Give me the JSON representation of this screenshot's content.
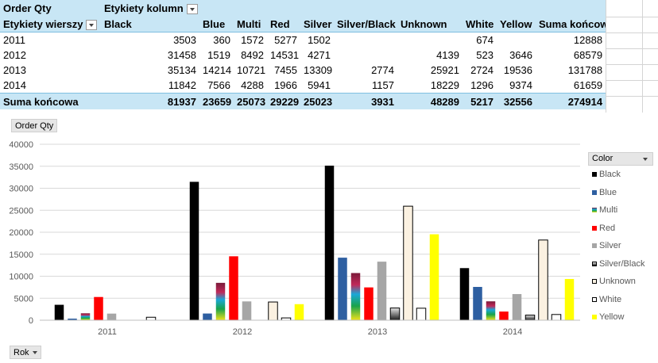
{
  "pivot": {
    "value_field": "Order Qty",
    "column_labels": "Etykiety kolumn",
    "row_labels": "Etykiety wierszy",
    "columns": [
      "Black",
      "Blue",
      "Multi",
      "Red",
      "Silver",
      "Silver/Black",
      "Unknown",
      "White",
      "Yellow",
      "Suma końcowa"
    ],
    "rows": [
      {
        "label": "2011",
        "cells": [
          "3503",
          "360",
          "1572",
          "5277",
          "1502",
          "",
          "",
          "674",
          "",
          "12888"
        ]
      },
      {
        "label": "2012",
        "cells": [
          "31458",
          "1519",
          "8492",
          "14531",
          "4271",
          "",
          "4139",
          "523",
          "3646",
          "68579"
        ]
      },
      {
        "label": "2013",
        "cells": [
          "35134",
          "14214",
          "10721",
          "7455",
          "13309",
          "2774",
          "25921",
          "2724",
          "19536",
          "131788"
        ]
      },
      {
        "label": "2014",
        "cells": [
          "11842",
          "7566",
          "4288",
          "1966",
          "5941",
          "1157",
          "18229",
          "1296",
          "9374",
          "61659"
        ]
      }
    ],
    "total": {
      "label": "Suma końcowa",
      "cells": [
        "81937",
        "23659",
        "25073",
        "29229",
        "25023",
        "3931",
        "48289",
        "5217",
        "32556",
        "274914"
      ]
    }
  },
  "chart": {
    "value_button": "Order Qty",
    "axis_button": "Rok",
    "legend_title": "Color"
  },
  "chart_data": {
    "type": "bar",
    "categories": [
      "2011",
      "2012",
      "2013",
      "2014"
    ],
    "ylim": [
      0,
      40000
    ],
    "yticks": [
      "0",
      "5000",
      "10000",
      "15000",
      "20000",
      "25000",
      "30000",
      "35000",
      "40000"
    ],
    "grid": true,
    "legend_position": "right",
    "series": [
      {
        "name": "Black",
        "values": [
          3503,
          31458,
          35134,
          11842
        ],
        "color": "#000000"
      },
      {
        "name": "Blue",
        "values": [
          360,
          1519,
          14214,
          7566
        ],
        "color": "#2e5fa1"
      },
      {
        "name": "Multi",
        "values": [
          1572,
          8492,
          10721,
          4288
        ],
        "color": "multi"
      },
      {
        "name": "Red",
        "values": [
          5277,
          14531,
          7455,
          1966
        ],
        "color": "#ff0000"
      },
      {
        "name": "Silver",
        "values": [
          1502,
          4271,
          13309,
          5941
        ],
        "color": "#a6a6a6"
      },
      {
        "name": "Silver/Black",
        "values": [
          null,
          null,
          2774,
          1157
        ],
        "color": "silverblack"
      },
      {
        "name": "Unknown",
        "values": [
          null,
          4139,
          25921,
          18229
        ],
        "color": "#fbf1e1"
      },
      {
        "name": "White",
        "values": [
          674,
          523,
          2724,
          1296
        ],
        "color": "#ffffff"
      },
      {
        "name": "Yellow",
        "values": [
          null,
          3646,
          19536,
          9374
        ],
        "color": "#ffff00"
      }
    ]
  }
}
